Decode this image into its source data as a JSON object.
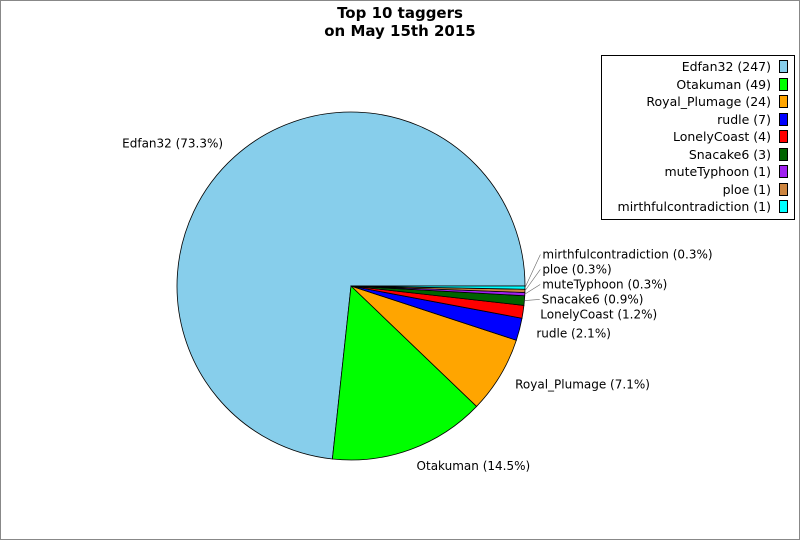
{
  "chart_data": {
    "type": "pie",
    "title": [
      "Top 10 taggers",
      "on May 15th 2015"
    ],
    "categories": [
      "Edfan32",
      "Otakuman",
      "Royal_Plumage",
      "rudle",
      "LonelyCoast",
      "Snacake6",
      "muteTyphoon",
      "ploe",
      "mirthfulcontradiction"
    ],
    "values": [
      247,
      49,
      24,
      7,
      4,
      3,
      1,
      1,
      1
    ],
    "data_labels": [
      "Edfan32 (73.3%)",
      "Otakuman (14.5%)",
      "Royal_Plumage (7.1%)",
      "rudle (2.1%)",
      "LonelyCoast (1.2%)",
      "Snacake6 (0.9%)",
      "muteTyphoon (0.3%)",
      "ploe (0.3%)",
      "mirthfulcontradiction (0.3%)"
    ],
    "legend": [
      "Edfan32 (247)",
      "Otakuman (49)",
      "Royal_Plumage (24)",
      "rudle (7)",
      "LonelyCoast (4)",
      "Snacake6 (3)",
      "muteTyphoon (1)",
      "ploe (1)",
      "mirthfulcontradiction (1)"
    ],
    "colors": [
      "#87ceeb",
      "#00ff00",
      "#ffa500",
      "#0000ff",
      "#ff0000",
      "#006400",
      "#a020f0",
      "#cd853f",
      "#00ffff"
    ],
    "legend_position": "top-right"
  }
}
